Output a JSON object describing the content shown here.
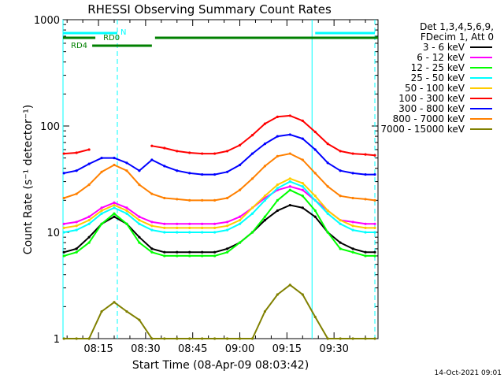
{
  "chart_data": {
    "type": "line",
    "title": "RHESSI Observing Summary Count Rates",
    "xlabel": "Start Time (08-Apr-09 08:03:42)",
    "ylabel": "Count Rate (s⁻¹ detector⁻¹)",
    "y_scale": "log",
    "ylim": [
      1,
      1000
    ],
    "xlim": [
      "08:03:42",
      "09:44:00"
    ],
    "x_ticks": [
      "08:15",
      "08:30",
      "08:45",
      "09:00",
      "09:15",
      "09:30"
    ],
    "y_ticks": [
      "1",
      "10",
      "100",
      "1000"
    ],
    "timestamp": "14-Oct-2021 09:01",
    "legend": {
      "header": [
        "Det 1,3,4,5,6,9,",
        "FDecim 1, Att 0"
      ],
      "placement": "right"
    },
    "flag_bars": [
      {
        "label": "N",
        "color": "#00ffff",
        "spans": [
          [
            "08:03:42",
            "08:21"
          ],
          [
            "09:24",
            "09:43"
          ]
        ]
      },
      {
        "label": "RD0",
        "color": "#008000",
        "spans": [
          [
            "08:03:42",
            "08:14"
          ],
          [
            "08:33",
            "09:44"
          ]
        ]
      },
      {
        "label": "RD4",
        "color": "#008000",
        "spans": [
          [
            "08:13",
            "08:32"
          ]
        ]
      }
    ],
    "vertical_lines": {
      "solid": [
        "08:03:42",
        "09:23"
      ],
      "dashed": [
        "08:21",
        "09:43"
      ],
      "color": "#00ffff"
    },
    "x": [
      "08:04",
      "08:08",
      "08:12",
      "08:16",
      "08:20",
      "08:24",
      "08:28",
      "08:32",
      "08:36",
      "08:40",
      "08:44",
      "08:48",
      "08:52",
      "08:56",
      "09:00",
      "09:04",
      "09:08",
      "09:12",
      "09:16",
      "09:20",
      "09:24",
      "09:28",
      "09:32",
      "09:36",
      "09:40",
      "09:43"
    ],
    "series": [
      {
        "name": "3 - 6 keV",
        "color": "#000000",
        "values": [
          6.5,
          7,
          9,
          12,
          14,
          12,
          9,
          7,
          6.5,
          6.5,
          6.5,
          6.5,
          6.5,
          7,
          8,
          10,
          13,
          16,
          18,
          17,
          14,
          10,
          8,
          7,
          6.5,
          6.5
        ]
      },
      {
        "name": "6 - 12 keV",
        "color": "#ff00ff",
        "values": [
          12,
          12.5,
          14,
          17,
          19,
          17,
          14,
          12.5,
          12,
          12,
          12,
          12,
          12,
          12.5,
          14,
          17,
          21,
          25,
          27,
          25,
          20,
          16,
          13,
          12.5,
          12,
          12
        ]
      },
      {
        "name": "12 - 25 keV",
        "color": "#00ff00",
        "values": [
          6,
          6.5,
          8,
          12,
          15,
          12,
          8,
          6.5,
          6,
          6,
          6,
          6,
          6,
          6.5,
          8,
          10,
          14,
          20,
          25,
          22,
          16,
          10,
          7,
          6.5,
          6,
          6
        ]
      },
      {
        "name": "25 - 50 keV",
        "color": "#00ffff",
        "values": [
          10,
          10.5,
          12,
          15,
          17,
          15,
          12,
          10.5,
          10,
          10,
          10,
          10,
          10,
          10.5,
          12,
          15,
          20,
          26,
          30,
          27,
          20,
          15,
          12,
          10.5,
          10,
          10
        ]
      },
      {
        "name": "50 - 100 keV",
        "color": "#ffcc00",
        "values": [
          11,
          11.5,
          13,
          16,
          18,
          16,
          13,
          11.5,
          11,
          11,
          11,
          11,
          11,
          11.5,
          13,
          17,
          22,
          28,
          32,
          29,
          22,
          16,
          13,
          11.5,
          11,
          11
        ]
      },
      {
        "name": "100 - 300 keV",
        "color": "#ff0000",
        "values": [
          55,
          56,
          60,
          0,
          0,
          0,
          0,
          65,
          62,
          58,
          56,
          55,
          55,
          58,
          66,
          82,
          105,
          122,
          125,
          112,
          88,
          68,
          58,
          55,
          54,
          53
        ]
      },
      {
        "name": "300 - 800 keV",
        "color": "#0000ff",
        "values": [
          36,
          38,
          44,
          50,
          50,
          45,
          38,
          48,
          42,
          38,
          36,
          35,
          35,
          37,
          43,
          55,
          68,
          80,
          83,
          76,
          60,
          45,
          38,
          36,
          35,
          35
        ]
      },
      {
        "name": "800 - 7000 keV",
        "color": "#ff8000",
        "values": [
          21,
          23,
          28,
          37,
          43,
          38,
          28,
          23,
          21,
          20.5,
          20,
          20,
          20,
          21,
          25,
          32,
          42,
          52,
          55,
          48,
          36,
          27,
          22,
          21,
          20.5,
          20
        ]
      },
      {
        "name": "7000 - 15000 keV",
        "color": "#808000",
        "values": [
          1,
          1,
          1,
          1.8,
          2.2,
          1.8,
          1.5,
          1,
          1,
          1,
          1,
          1,
          1,
          1,
          1,
          1,
          1.8,
          2.6,
          3.2,
          2.6,
          1.6,
          1,
          1,
          1,
          1,
          1
        ]
      }
    ]
  }
}
